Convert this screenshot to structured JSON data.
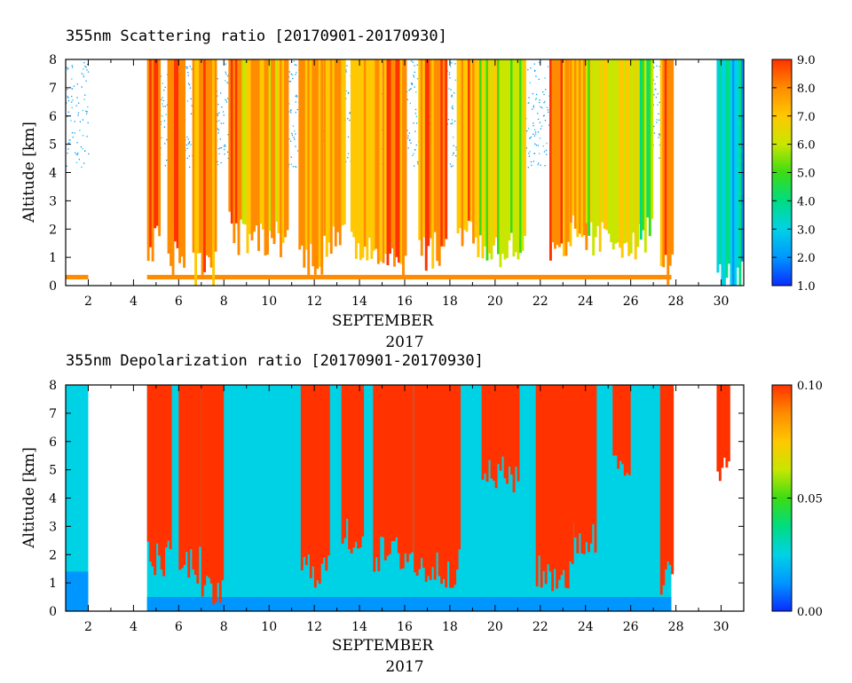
{
  "chart_data": [
    {
      "type": "heatmap",
      "title": "355nm Scattering ratio [20170901-20170930]",
      "xlabel": "SEPTEMBER",
      "xlabel2": "2017",
      "ylabel": "Altitude [km]",
      "xlim": [
        1,
        31
      ],
      "ylim": [
        0,
        8
      ],
      "x_tick_labels": [
        "2",
        "4",
        "6",
        "8",
        "10",
        "12",
        "14",
        "16",
        "18",
        "20",
        "22",
        "24",
        "26",
        "28",
        "30"
      ],
      "x_tick_values": [
        2,
        4,
        6,
        8,
        10,
        12,
        14,
        16,
        18,
        20,
        22,
        24,
        26,
        28,
        30
      ],
      "y_tick_labels": [
        "0",
        "1",
        "2",
        "3",
        "4",
        "5",
        "6",
        "7",
        "8"
      ],
      "y_tick_values": [
        0,
        1,
        2,
        3,
        4,
        5,
        6,
        7,
        8
      ],
      "colorbar": {
        "min": 1.0,
        "max": 9.0,
        "tick_labels": [
          "1.0",
          "2.0",
          "3.0",
          "4.0",
          "5.0",
          "6.0",
          "7.0",
          "8.0",
          "9.0"
        ],
        "tick_values": [
          1,
          2,
          3,
          4,
          5,
          6,
          7,
          8,
          9
        ],
        "colors": [
          "#0a2cff",
          "#0096ff",
          "#00d2e6",
          "#00dc82",
          "#3cdc14",
          "#c8e600",
          "#ffc800",
          "#ff8c00",
          "#ff3200"
        ]
      },
      "data_gaps_days": [
        [
          2.0,
          4.6
        ],
        [
          27.8,
          29.8
        ]
      ],
      "cloud_columns": [
        {
          "x0": 4.6,
          "x1": 5.1,
          "base": 1.5,
          "top": 8.0,
          "value": 8.3
        },
        {
          "x0": 5.5,
          "x1": 6.2,
          "base": 1.0,
          "top": 8.0,
          "value": 8.5
        },
        {
          "x0": 6.6,
          "x1": 7.6,
          "base": 0.6,
          "top": 8.0,
          "value": 8.0
        },
        {
          "x0": 8.2,
          "x1": 8.6,
          "base": 2.0,
          "top": 8.0,
          "value": 8.6
        },
        {
          "x0": 8.6,
          "x1": 10.8,
          "base": 1.7,
          "top": 8.0,
          "value": 7.2
        },
        {
          "x0": 11.3,
          "x1": 12.3,
          "base": 1.0,
          "top": 8.0,
          "value": 8.0
        },
        {
          "x0": 12.4,
          "x1": 13.3,
          "base": 1.5,
          "top": 8.0,
          "value": 7.6
        },
        {
          "x0": 13.6,
          "x1": 14.9,
          "base": 1.4,
          "top": 8.0,
          "value": 7.4
        },
        {
          "x0": 15.0,
          "x1": 16.0,
          "base": 1.0,
          "top": 8.0,
          "value": 8.3
        },
        {
          "x0": 16.6,
          "x1": 17.8,
          "base": 1.2,
          "top": 8.0,
          "value": 8.1
        },
        {
          "x0": 18.3,
          "x1": 19.2,
          "base": 2.0,
          "top": 8.0,
          "value": 7.8
        },
        {
          "x0": 19.2,
          "x1": 21.3,
          "base": 1.3,
          "top": 8.0,
          "value": 6.2
        },
        {
          "x0": 22.4,
          "x1": 23.3,
          "base": 1.0,
          "top": 8.0,
          "value": 8.2
        },
        {
          "x0": 23.3,
          "x1": 24.0,
          "base": 1.8,
          "top": 8.0,
          "value": 7.5
        },
        {
          "x0": 24.0,
          "x1": 26.4,
          "base": 1.6,
          "top": 8.0,
          "value": 6.4
        },
        {
          "x0": 26.4,
          "x1": 26.9,
          "base": 1.8,
          "top": 8.0,
          "value": 5.2
        },
        {
          "x0": 27.3,
          "x1": 27.8,
          "base": 0.7,
          "top": 8.0,
          "value": 8.0
        },
        {
          "x0": 29.8,
          "x1": 30.9,
          "base": 0.2,
          "top": 8.0,
          "value": 3.2
        }
      ]
    },
    {
      "type": "heatmap",
      "title": "355nm Depolarization ratio [20170901-20170930]",
      "xlabel": "SEPTEMBER",
      "xlabel2": "2017",
      "ylabel": "Altitude [km]",
      "xlim": [
        1,
        31
      ],
      "ylim": [
        0,
        8
      ],
      "x_tick_labels": [
        "2",
        "4",
        "6",
        "8",
        "10",
        "12",
        "14",
        "16",
        "18",
        "20",
        "22",
        "24",
        "26",
        "28",
        "30"
      ],
      "x_tick_values": [
        2,
        4,
        6,
        8,
        10,
        12,
        14,
        16,
        18,
        20,
        22,
        24,
        26,
        28,
        30
      ],
      "y_tick_labels": [
        "0",
        "1",
        "2",
        "3",
        "4",
        "5",
        "6",
        "7",
        "8"
      ],
      "y_tick_values": [
        0,
        1,
        2,
        3,
        4,
        5,
        6,
        7,
        8
      ],
      "colorbar": {
        "min": 0.0,
        "max": 0.1,
        "tick_labels": [
          "0.00",
          "0.05",
          "0.10"
        ],
        "tick_values": [
          0.0,
          0.05,
          0.1
        ],
        "colors": [
          "#0a2cff",
          "#0096ff",
          "#00d2e6",
          "#00dc82",
          "#3cdc14",
          "#c8e600",
          "#ffc800",
          "#ff8c00",
          "#ff3200"
        ]
      },
      "data_gaps_days": [
        [
          2.0,
          4.6
        ],
        [
          27.8,
          29.8
        ]
      ],
      "background_value": 0.022,
      "cloud_columns": [
        {
          "x0": 4.6,
          "x1": 5.6,
          "base": 1.8,
          "top": 8.0,
          "value": 0.1
        },
        {
          "x0": 6.0,
          "x1": 6.9,
          "base": 1.6,
          "top": 8.0,
          "value": 0.1
        },
        {
          "x0": 7.0,
          "x1": 7.9,
          "base": 0.6,
          "top": 8.0,
          "value": 0.1
        },
        {
          "x0": 11.4,
          "x1": 12.6,
          "base": 1.5,
          "top": 8.0,
          "value": 0.1
        },
        {
          "x0": 13.2,
          "x1": 14.1,
          "base": 2.6,
          "top": 8.0,
          "value": 0.1
        },
        {
          "x0": 14.6,
          "x1": 16.3,
          "base": 2.0,
          "top": 8.0,
          "value": 0.1
        },
        {
          "x0": 16.4,
          "x1": 18.4,
          "base": 1.5,
          "top": 8.0,
          "value": 0.1
        },
        {
          "x0": 19.4,
          "x1": 21.0,
          "base": 4.8,
          "top": 8.0,
          "value": 0.1
        },
        {
          "x0": 21.8,
          "x1": 23.4,
          "base": 1.3,
          "top": 8.0,
          "value": 0.1
        },
        {
          "x0": 23.4,
          "x1": 24.4,
          "base": 2.5,
          "top": 8.0,
          "value": 0.1
        },
        {
          "x0": 25.2,
          "x1": 25.9,
          "base": 5.4,
          "top": 8.0,
          "value": 0.1
        },
        {
          "x0": 27.3,
          "x1": 27.8,
          "base": 1.2,
          "top": 8.0,
          "value": 0.1
        },
        {
          "x0": 29.8,
          "x1": 30.3,
          "base": 4.8,
          "top": 8.0,
          "value": 0.1
        }
      ]
    }
  ]
}
